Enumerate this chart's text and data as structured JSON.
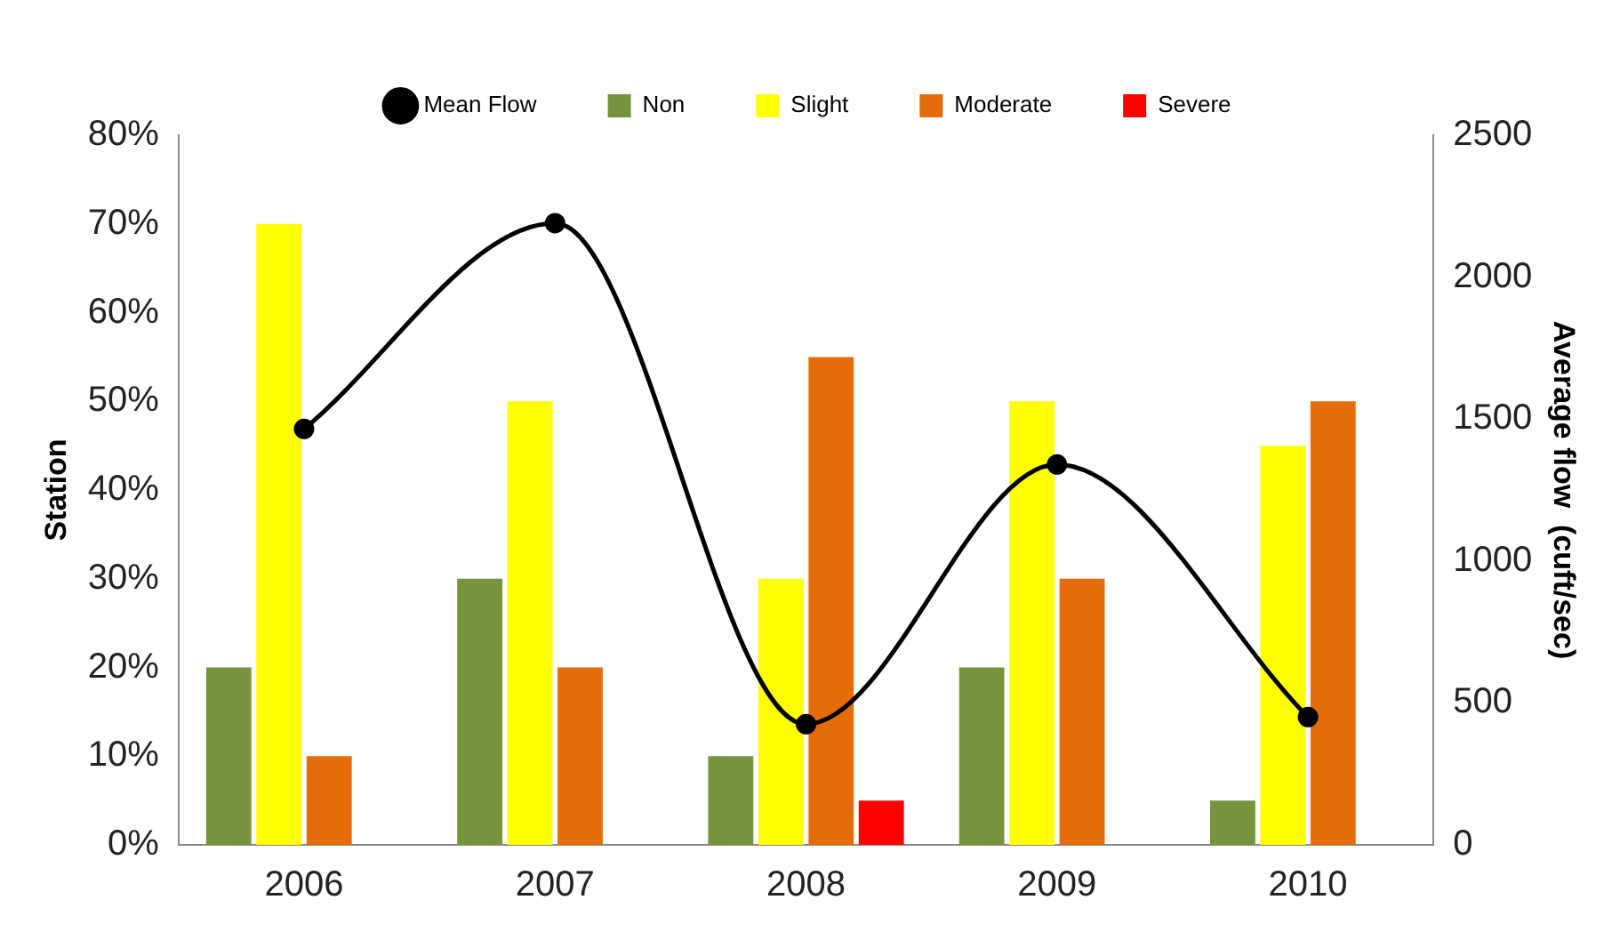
{
  "chart_data": {
    "type": "bar",
    "categories": [
      "2006",
      "2007",
      "2008",
      "2009",
      "2010"
    ],
    "series": [
      {
        "name": "Non",
        "color": "#77933c",
        "values": [
          20,
          30,
          10,
          20,
          5
        ]
      },
      {
        "name": "Slight",
        "color": "#ffff00",
        "values": [
          70,
          50,
          30,
          50,
          45
        ]
      },
      {
        "name": "Moderate",
        "color": "#e46c0a",
        "values": [
          10,
          20,
          55,
          30,
          50
        ]
      },
      {
        "name": "Severe",
        "color": "#ff0000",
        "values": [
          null,
          null,
          5,
          null,
          null
        ]
      },
      {
        "name": "Mean Flow",
        "type": "line",
        "axis": "y2",
        "color": "#000000",
        "values": [
          1465,
          2190,
          425,
          1340,
          450
        ]
      }
    ],
    "ylabel": "Station",
    "y2label": "Average flow  (cuft/sec)",
    "ylim": [
      0,
      80
    ],
    "yticks": [
      {
        "value": 0,
        "label": "0%"
      },
      {
        "value": 10,
        "label": "10%"
      },
      {
        "value": 20,
        "label": "20%"
      },
      {
        "value": 30,
        "label": "30%"
      },
      {
        "value": 40,
        "label": "40%"
      },
      {
        "value": 50,
        "label": "50%"
      },
      {
        "value": 60,
        "label": "60%"
      },
      {
        "value": 70,
        "label": "70%"
      },
      {
        "value": 80,
        "label": "80%"
      }
    ],
    "y2lim": [
      0,
      2500
    ],
    "y2ticks": [
      0,
      500,
      1000,
      1500,
      2000,
      2500
    ],
    "legend": "top",
    "grid": false,
    "marker": "circle",
    "line_style": "solid"
  }
}
